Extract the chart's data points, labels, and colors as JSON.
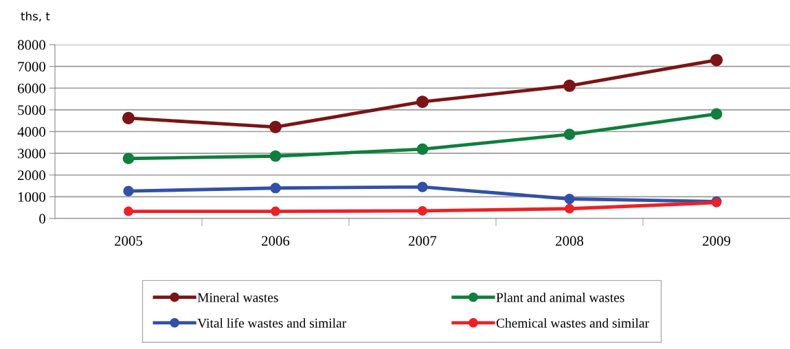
{
  "chart_data": {
    "type": "line",
    "ylabel": "ths, t",
    "categories": [
      "2005",
      "2006",
      "2007",
      "2008",
      "2009"
    ],
    "series": [
      {
        "name": "Mineral wastes",
        "color": "#7b1416",
        "values": [
          4620,
          4210,
          5370,
          6110,
          7290
        ]
      },
      {
        "name": "Plant and animal wastes",
        "color": "#0e7f3c",
        "values": [
          2760,
          2870,
          3190,
          3870,
          4810
        ]
      },
      {
        "name": "Vital life wastes and similar",
        "color": "#3150a8",
        "values": [
          1260,
          1400,
          1450,
          900,
          780
        ]
      },
      {
        "name": "Chemical wastes and similar",
        "color": "#ee2024",
        "values": [
          330,
          330,
          350,
          450,
          730
        ]
      }
    ],
    "ylim": [
      0,
      8000
    ],
    "yticks": [
      0,
      1000,
      2000,
      3000,
      4000,
      5000,
      6000,
      7000,
      8000
    ],
    "grid": "y",
    "legend": "bottom",
    "marker": "circle",
    "line_style": "solid"
  }
}
